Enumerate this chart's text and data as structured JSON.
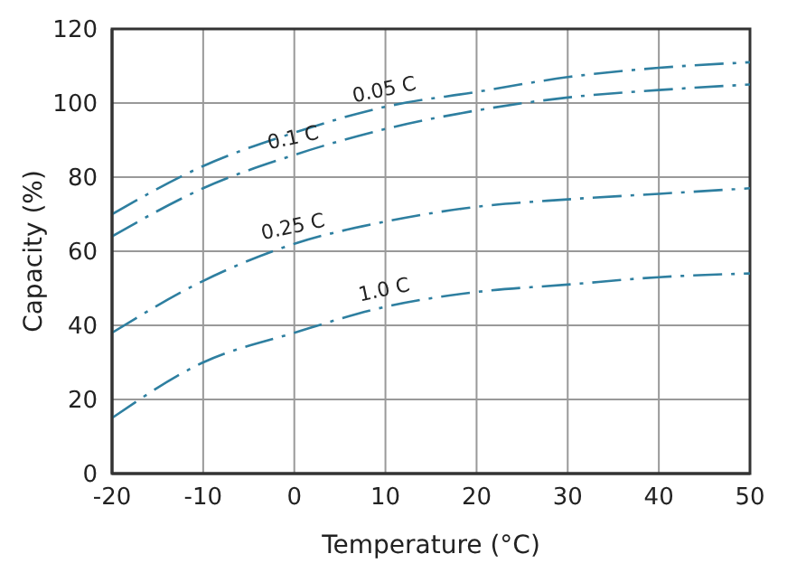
{
  "chart_data": {
    "type": "line",
    "xlabel": "Temperature (°C)",
    "ylabel": "Capacity (%)",
    "x": [
      -20,
      -10,
      0,
      10,
      20,
      30,
      40,
      50
    ],
    "series": [
      {
        "name": "0.05 C",
        "color": "#2e7fa0",
        "values": [
          70,
          83,
          92,
          99,
          103,
          107,
          109.5,
          111
        ]
      },
      {
        "name": "0.1 C",
        "color": "#2e7fa0",
        "values": [
          64,
          77,
          86,
          93,
          98,
          101.5,
          103.5,
          105
        ]
      },
      {
        "name": "0.25 C",
        "color": "#2e7fa0",
        "values": [
          38,
          52,
          62,
          68,
          72,
          74,
          75.5,
          77
        ]
      },
      {
        "name": "1.0 C",
        "color": "#2e7fa0",
        "values": [
          15,
          30,
          38,
          45,
          49,
          51,
          53,
          54
        ]
      }
    ],
    "xlim": [
      -20,
      50
    ],
    "xticks": [
      -20,
      -10,
      0,
      10,
      20,
      30,
      40,
      50
    ],
    "ylim": [
      0,
      120
    ],
    "yticks": [
      0,
      20,
      40,
      60,
      80,
      100,
      120
    ],
    "grid": true,
    "legend": false,
    "marker": "none",
    "line_style": "dashed"
  }
}
